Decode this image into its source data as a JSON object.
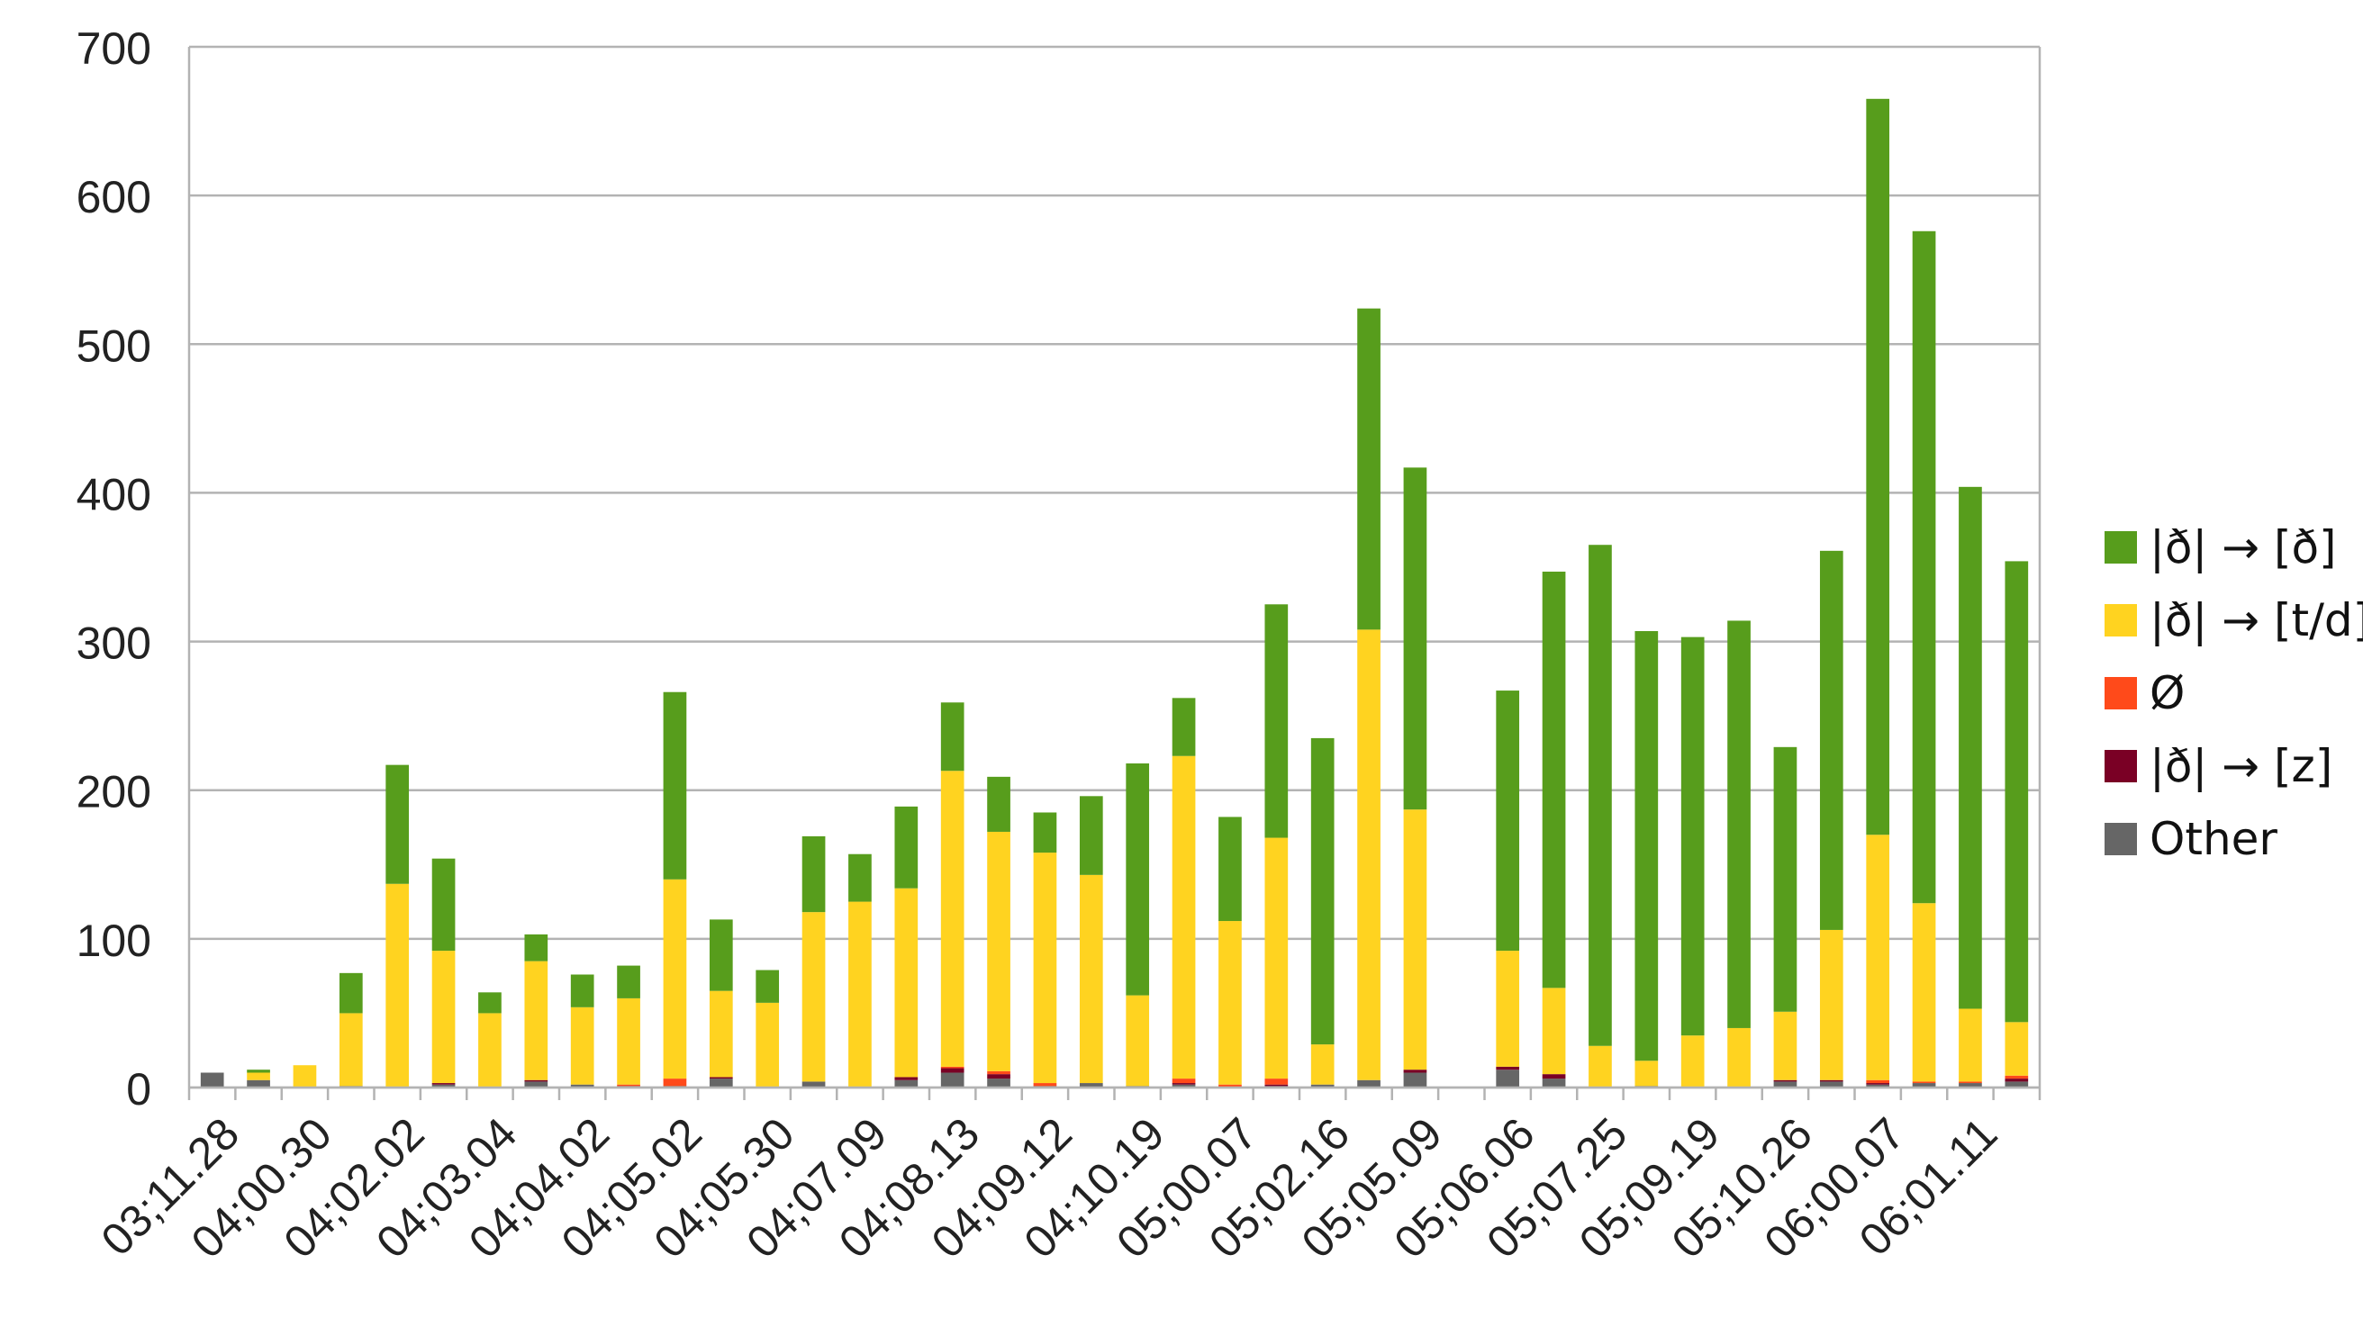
{
  "chart_data": {
    "type": "bar",
    "stacked": true,
    "title": "",
    "xlabel": "",
    "ylabel": "",
    "ylim": [
      0,
      700
    ],
    "yticks": [
      0,
      100,
      200,
      300,
      400,
      500,
      600,
      700
    ],
    "grid": true,
    "legend_position": "right",
    "categories": [
      "03;11.28",
      "",
      "04;00.30",
      "",
      "04;02.02",
      "",
      "04;03.04",
      "",
      "04;04.02",
      "",
      "04;05.02",
      "",
      "04;05.30",
      "",
      "04;07.09",
      "",
      "04;08.13",
      "",
      "04;09.12",
      "",
      "04;10.19",
      "",
      "05;00.07",
      "",
      "05;02.16",
      "",
      "05;05.09",
      "",
      "05;06.06",
      "",
      "05;07.25",
      "",
      "05;09.19",
      "",
      "05;10.26",
      "",
      "06;00.07",
      "",
      "06;01.11",
      ""
    ],
    "series": [
      {
        "name": "Other",
        "color": "#666666",
        "values": [
          10,
          5,
          0,
          1,
          0,
          2,
          0,
          4,
          2,
          1,
          1,
          6,
          0,
          4,
          0,
          5,
          10,
          6,
          1,
          3,
          1,
          2,
          0,
          1,
          2,
          5,
          10,
          0,
          12,
          6,
          0,
          1,
          0,
          0,
          4,
          4,
          2,
          3,
          3,
          4
        ]
      },
      {
        "name": "|ð| → [z]",
        "color": "#7a0025",
        "values": [
          0,
          0,
          0,
          0,
          0,
          1,
          0,
          1,
          0,
          0,
          0,
          1,
          0,
          0,
          0,
          2,
          3,
          3,
          0,
          0,
          0,
          1,
          0,
          1,
          0,
          0,
          2,
          0,
          2,
          3,
          0,
          0,
          0,
          0,
          1,
          1,
          1,
          0,
          0,
          2
        ]
      },
      {
        "name": "Ø",
        "color": "#ff4a1a",
        "values": [
          0,
          0,
          0,
          0,
          0,
          0,
          0,
          0,
          0,
          1,
          5,
          0,
          0,
          0,
          0,
          0,
          1,
          2,
          2,
          0,
          0,
          3,
          2,
          4,
          0,
          0,
          0,
          0,
          0,
          0,
          0,
          0,
          0,
          0,
          0,
          0,
          2,
          1,
          1,
          2
        ]
      },
      {
        "name": "|ð| → [t/d]",
        "color": "#ffd320",
        "values": [
          0,
          5,
          15,
          49,
          137,
          89,
          50,
          80,
          52,
          58,
          134,
          58,
          57,
          114,
          125,
          127,
          199,
          161,
          155,
          140,
          61,
          217,
          110,
          162,
          27,
          303,
          175,
          0,
          78,
          58,
          28,
          17,
          35,
          40,
          46,
          101,
          165,
          120,
          49,
          36
        ]
      },
      {
        "name": "|ð| → [ð]",
        "color": "#579d1c",
        "values": [
          0,
          2,
          0,
          27,
          80,
          62,
          14,
          18,
          22,
          22,
          126,
          48,
          22,
          51,
          32,
          55,
          46,
          37,
          27,
          53,
          156,
          39,
          70,
          157,
          206,
          216,
          230,
          0,
          175,
          280,
          337,
          289,
          268,
          274,
          178,
          255,
          495,
          452,
          351,
          310
        ]
      }
    ],
    "legend_order": [
      "|ð| → [ð]",
      "|ð| → [t/d]",
      "Ø",
      "|ð| → [z]",
      "Other"
    ]
  }
}
